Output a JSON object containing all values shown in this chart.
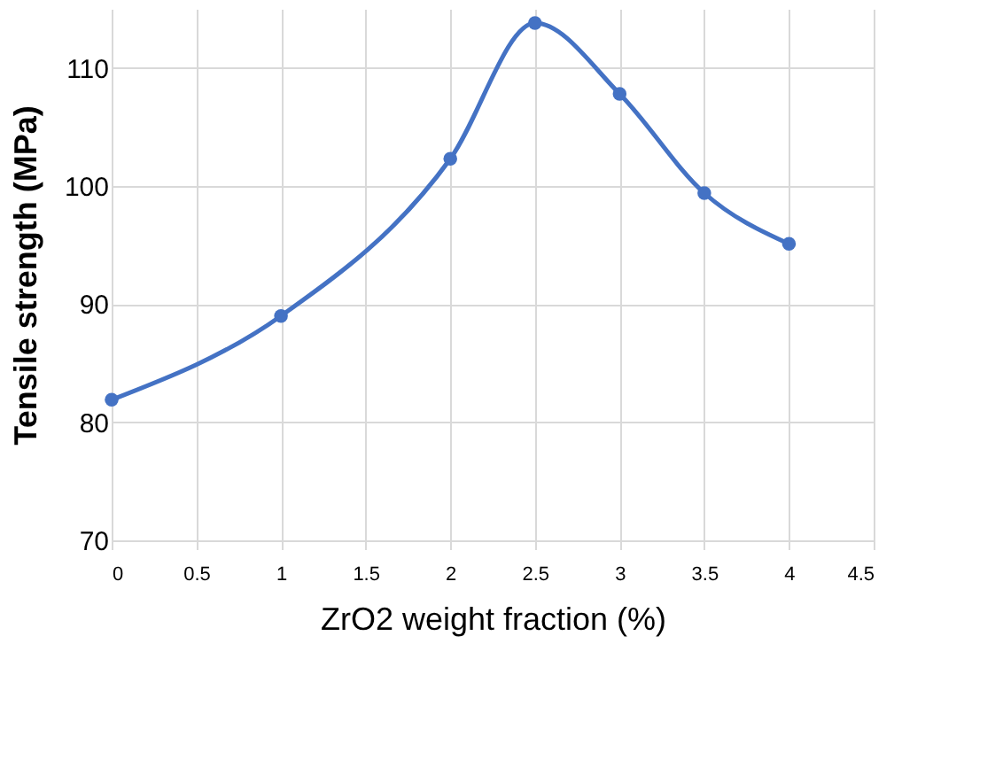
{
  "chart_data": {
    "type": "line",
    "xlabel": "ZrO2 weight fraction (%)",
    "ylabel": "Tensile strength (MPa)",
    "x": [
      0,
      1,
      2,
      2.5,
      3,
      3.5,
      4
    ],
    "series": [
      {
        "color": "#4472c4",
        "values": [
          81.9,
          89.0,
          102.3,
          113.8,
          107.8,
          99.4,
          95.1
        ]
      }
    ],
    "xlim": [
      0,
      4.5
    ],
    "xticks": [
      0,
      0.5,
      1,
      1.5,
      2,
      2.5,
      3,
      3.5,
      4,
      4.5
    ],
    "ylim": [
      70,
      115
    ],
    "yticks": [
      70,
      80,
      90,
      100,
      110
    ],
    "grid": true,
    "marker": "circle",
    "line_style": "solid"
  }
}
